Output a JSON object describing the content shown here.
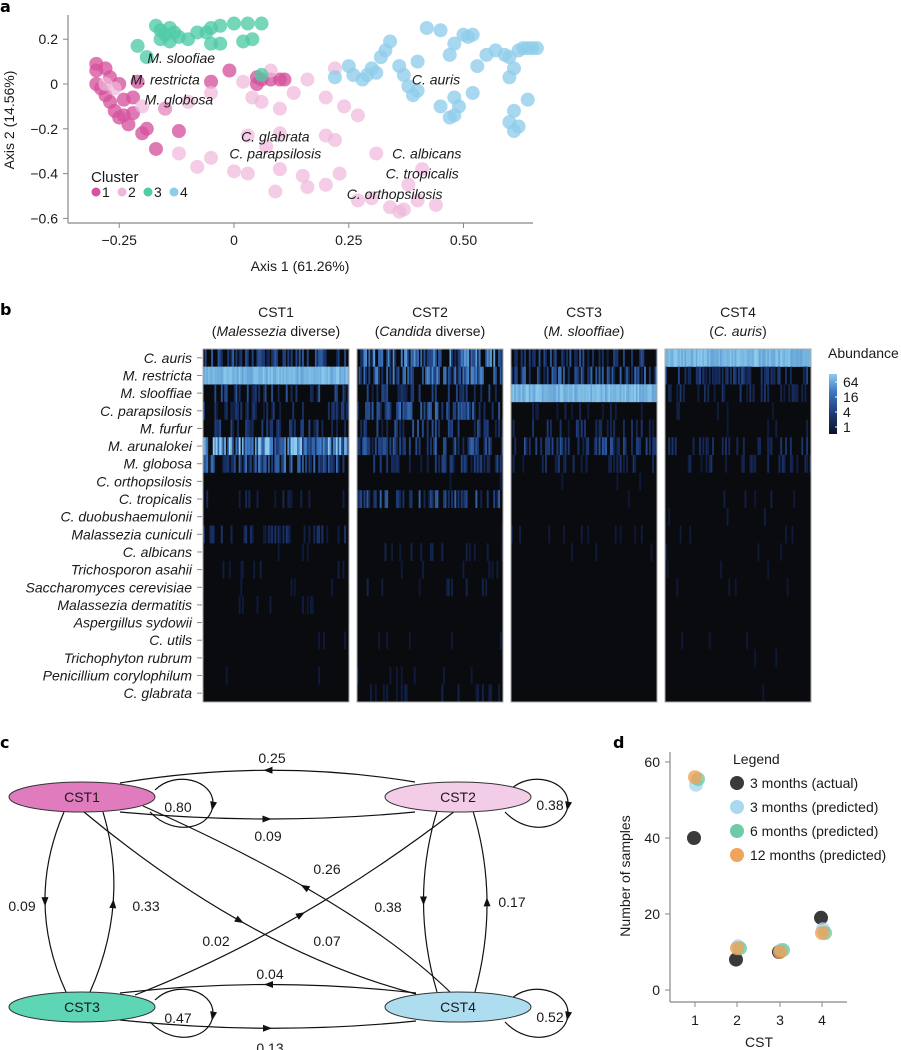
{
  "figure": {
    "panel_letters": [
      "a",
      "b",
      "c",
      "d"
    ]
  },
  "chart_data": [
    {
      "panel": "a",
      "type": "scatter",
      "title": "",
      "xlabel": "Axis 1 (61.26%)",
      "ylabel": "Axis 2 (14.56%)",
      "xlim": [
        -0.34,
        0.71
      ],
      "ylim": [
        -0.62,
        0.29
      ],
      "xticks": [
        -0.25,
        0,
        0.25,
        0.5
      ],
      "xtick_labels": [
        "−0.25",
        "0",
        "0.25",
        "0.50"
      ],
      "yticks": [
        0.2,
        0,
        -0.2,
        -0.4,
        -0.6
      ],
      "ytick_labels": [
        "0.2",
        "0",
        "−0.2",
        "−0.4",
        "−0.6"
      ],
      "legend": {
        "title": "Cluster",
        "placement": "bottom-left",
        "entries": [
          {
            "label": "1",
            "color": "#D6539E"
          },
          {
            "label": "2",
            "color": "#EFB6DA"
          },
          {
            "label": "3",
            "color": "#4FCBA6"
          },
          {
            "label": "4",
            "color": "#8ECDEA"
          }
        ]
      },
      "annotations": [
        {
          "text": "M. sloofiae",
          "x": -0.115,
          "y": 0.115
        },
        {
          "text": "M. restricta",
          "x": -0.15,
          "y": 0.02
        },
        {
          "text": "M. globosa",
          "x": -0.12,
          "y": -0.07
        },
        {
          "text": "C. auris",
          "x": 0.44,
          "y": 0.02
        },
        {
          "text": "C. glabrata",
          "x": 0.09,
          "y": -0.235
        },
        {
          "text": "C. parapsilosis",
          "x": 0.09,
          "y": -0.31
        },
        {
          "text": "C. albicans",
          "x": 0.42,
          "y": -0.31
        },
        {
          "text": "C. tropicalis",
          "x": 0.41,
          "y": -0.4
        },
        {
          "text": "C. orthopsilosis",
          "x": 0.35,
          "y": -0.49
        }
      ],
      "series": [
        {
          "name": "1",
          "color": "#D6539E",
          "points": [
            [
              -0.3,
              0.09
            ],
            [
              -0.28,
              0.07
            ],
            [
              -0.3,
              0.0
            ],
            [
              -0.29,
              -0.02
            ],
            [
              -0.28,
              -0.05
            ],
            [
              -0.27,
              -0.08
            ],
            [
              -0.26,
              -0.12
            ],
            [
              -0.25,
              -0.15
            ],
            [
              -0.24,
              -0.14
            ],
            [
              -0.22,
              -0.13
            ],
            [
              -0.23,
              -0.18
            ],
            [
              -0.2,
              -0.22
            ],
            [
              -0.19,
              -0.2
            ],
            [
              -0.17,
              -0.29
            ],
            [
              -0.12,
              -0.21
            ],
            [
              -0.27,
              0.03
            ],
            [
              -0.25,
              0.0
            ],
            [
              -0.24,
              -0.07
            ],
            [
              -0.22,
              -0.06
            ],
            [
              -0.21,
              0.01
            ],
            [
              -0.05,
              0.01
            ],
            [
              -0.01,
              0.06
            ],
            [
              0.05,
              0.03
            ],
            [
              0.05,
              0.0
            ],
            [
              0.06,
              0.02
            ],
            [
              0.08,
              0.02
            ],
            [
              0.1,
              0.02
            ],
            [
              0.11,
              0.02
            ],
            [
              -0.15,
              -0.11
            ],
            [
              -0.3,
              0.06
            ]
          ]
        },
        {
          "name": "2",
          "color": "#EFB6DA",
          "points": [
            [
              -0.28,
              0.0
            ],
            [
              -0.26,
              -0.02
            ],
            [
              -0.2,
              -0.1
            ],
            [
              -0.15,
              -0.11
            ],
            [
              -0.1,
              -0.08
            ],
            [
              -0.05,
              -0.04
            ],
            [
              0.02,
              0.01
            ],
            [
              0.04,
              -0.06
            ],
            [
              0.06,
              -0.08
            ],
            [
              0.1,
              -0.11
            ],
            [
              0.13,
              -0.04
            ],
            [
              0.16,
              0.02
            ],
            [
              0.2,
              -0.06
            ],
            [
              0.22,
              0.07
            ],
            [
              0.24,
              -0.1
            ],
            [
              0.27,
              -0.14
            ],
            [
              0.08,
              0.06
            ],
            [
              -0.12,
              -0.31
            ],
            [
              -0.08,
              -0.37
            ],
            [
              -0.05,
              -0.33
            ],
            [
              0.0,
              -0.39
            ],
            [
              0.03,
              -0.4
            ],
            [
              0.09,
              -0.48
            ],
            [
              0.1,
              -0.38
            ],
            [
              0.15,
              -0.41
            ],
            [
              0.16,
              -0.46
            ],
            [
              0.2,
              -0.45
            ],
            [
              0.23,
              -0.4
            ],
            [
              0.27,
              -0.52
            ],
            [
              0.3,
              -0.51
            ],
            [
              0.34,
              -0.55
            ],
            [
              0.36,
              -0.57
            ],
            [
              0.37,
              -0.56
            ],
            [
              0.4,
              -0.52
            ],
            [
              0.44,
              -0.54
            ],
            [
              0.41,
              -0.38
            ],
            [
              0.38,
              -0.45
            ],
            [
              0.2,
              -0.23
            ],
            [
              0.22,
              -0.25
            ],
            [
              0.31,
              -0.31
            ],
            [
              0.03,
              -0.23
            ],
            [
              0.07,
              -0.28
            ],
            [
              0.1,
              -0.22
            ]
          ]
        },
        {
          "name": "3",
          "color": "#4FCBA6",
          "points": [
            [
              -0.17,
              0.26
            ],
            [
              -0.16,
              0.24
            ],
            [
              -0.15,
              0.22
            ],
            [
              -0.14,
              0.25
            ],
            [
              -0.13,
              0.23
            ],
            [
              -0.16,
              0.2
            ],
            [
              -0.14,
              0.19
            ],
            [
              -0.12,
              0.21
            ],
            [
              -0.1,
              0.2
            ],
            [
              -0.08,
              0.23
            ],
            [
              -0.06,
              0.23
            ],
            [
              -0.05,
              0.25
            ],
            [
              -0.03,
              0.26
            ],
            [
              0.0,
              0.27
            ],
            [
              0.03,
              0.27
            ],
            [
              0.06,
              0.27
            ],
            [
              0.02,
              0.19
            ],
            [
              0.04,
              0.2
            ],
            [
              -0.05,
              0.18
            ],
            [
              -0.03,
              0.18
            ],
            [
              -0.21,
              0.17
            ],
            [
              -0.19,
              0.12
            ],
            [
              0.06,
              0.04
            ]
          ]
        },
        {
          "name": "4",
          "color": "#8ECDEA",
          "points": [
            [
              0.22,
              0.03
            ],
            [
              0.25,
              0.08
            ],
            [
              0.26,
              0.04
            ],
            [
              0.28,
              0.02
            ],
            [
              0.29,
              0.04
            ],
            [
              0.31,
              0.05
            ],
            [
              0.32,
              0.12
            ],
            [
              0.33,
              0.15
            ],
            [
              0.34,
              0.19
            ],
            [
              0.3,
              0.07
            ],
            [
              0.37,
              0.04
            ],
            [
              0.38,
              -0.01
            ],
            [
              0.39,
              -0.05
            ],
            [
              0.4,
              -0.03
            ],
            [
              0.42,
              0.25
            ],
            [
              0.45,
              0.24
            ],
            [
              0.47,
              0.13
            ],
            [
              0.48,
              0.18
            ],
            [
              0.5,
              0.22
            ],
            [
              0.51,
              0.21
            ],
            [
              0.52,
              0.22
            ],
            [
              0.45,
              -0.1
            ],
            [
              0.48,
              -0.06
            ],
            [
              0.49,
              -0.1
            ],
            [
              0.52,
              -0.04
            ],
            [
              0.47,
              -0.15
            ],
            [
              0.48,
              -0.14
            ],
            [
              0.55,
              0.13
            ],
            [
              0.57,
              0.15
            ],
            [
              0.59,
              0.13
            ],
            [
              0.6,
              0.12
            ],
            [
              0.62,
              0.15
            ],
            [
              0.63,
              0.16
            ],
            [
              0.64,
              0.16
            ],
            [
              0.65,
              0.16
            ],
            [
              0.66,
              0.16
            ],
            [
              0.61,
              0.07
            ],
            [
              0.6,
              0.03
            ],
            [
              0.64,
              -0.07
            ],
            [
              0.61,
              -0.12
            ],
            [
              0.6,
              -0.17
            ],
            [
              0.62,
              -0.19
            ],
            [
              0.61,
              -0.21
            ],
            [
              0.53,
              0.08
            ],
            [
              0.4,
              0.1
            ],
            [
              0.36,
              0.08
            ]
          ]
        }
      ]
    },
    {
      "panel": "b",
      "type": "heatmap",
      "title": "",
      "columns_groups": [
        {
          "name": "CST1",
          "subtitle_italic": "Malessezia",
          "subtitle_rest": " diverse",
          "subtitle_plain_prefix": "("
        },
        {
          "name": "CST2",
          "subtitle_italic": "Candida",
          "subtitle_rest": " diverse",
          "subtitle_plain_prefix": "("
        },
        {
          "name": "CST3",
          "subtitle_italic": "M. slooffiae",
          "subtitle_rest": "",
          "subtitle_plain_prefix": "("
        },
        {
          "name": "CST4",
          "subtitle_italic": "C. auris",
          "subtitle_rest": "",
          "subtitle_plain_prefix": "("
        }
      ],
      "rows": [
        "C. auris",
        "M. restricta",
        "M. slooffiae",
        "C. parapsilosis",
        "M. furfur",
        "M. arunalokei",
        "M. globosa",
        "C. orthopsilosis",
        "C. tropicalis",
        "C. duobushaemulonii",
        "Malassezia cuniculi",
        "C. albicans",
        "Trichosporon asahii",
        "Saccharomyces cerevisiae",
        "Malassezia dermatitis",
        "Aspergillus sydowii",
        "C. utils",
        "Trichophyton rubrum",
        "Penicillium corylophilum",
        "C. glabrata"
      ],
      "mean_intensity": [
        [
          0.35,
          0.95,
          0.3,
          0.22,
          0.25,
          0.65,
          0.45,
          0.0,
          0.12,
          0.02,
          0.18,
          0.05,
          0.08,
          0.05,
          0.06,
          0.01,
          0.06,
          0.03,
          0.05,
          0.02
        ],
        [
          0.5,
          0.45,
          0.25,
          0.4,
          0.3,
          0.35,
          0.25,
          0.06,
          0.35,
          0.03,
          0.04,
          0.1,
          0.08,
          0.1,
          0.03,
          0.03,
          0.05,
          0.03,
          0.05,
          0.1
        ],
        [
          0.3,
          0.4,
          0.95,
          0.1,
          0.2,
          0.3,
          0.18,
          0.05,
          0.04,
          0.01,
          0.06,
          0.05,
          0.03,
          0.03,
          0.02,
          0.03,
          0.02,
          0.01,
          0.01,
          0.01
        ],
        [
          0.95,
          0.25,
          0.2,
          0.08,
          0.08,
          0.18,
          0.16,
          0.02,
          0.08,
          0.06,
          0.05,
          0.06,
          0.04,
          0.04,
          0.03,
          0.03,
          0.04,
          0.04,
          0.02,
          0.03
        ]
      ],
      "colorbar": {
        "title": "Abundance",
        "ticks": [
          "64",
          "16",
          "4",
          "1"
        ],
        "scale": "log2",
        "colors": [
          "#0B1129",
          "#1D3C7A",
          "#3C78C0",
          "#8DCCEE"
        ]
      }
    },
    {
      "panel": "c",
      "type": "diagram",
      "nodes": [
        {
          "id": "CST1",
          "label": "CST1",
          "color": "#E07BBE"
        },
        {
          "id": "CST2",
          "label": "CST2",
          "color": "#F3CCE8"
        },
        {
          "id": "CST3",
          "label": "CST3",
          "color": "#5ED5B5"
        },
        {
          "id": "CST4",
          "label": "CST4",
          "color": "#AEDDF0"
        }
      ],
      "edges": [
        {
          "from": "CST1",
          "to": "CST1",
          "p": "0.80"
        },
        {
          "from": "CST2",
          "to": "CST2",
          "p": "0.38"
        },
        {
          "from": "CST3",
          "to": "CST3",
          "p": "0.47"
        },
        {
          "from": "CST4",
          "to": "CST4",
          "p": "0.52"
        },
        {
          "from": "CST2",
          "to": "CST1",
          "p": "0.25"
        },
        {
          "from": "CST1",
          "to": "CST2",
          "p": "0.09"
        },
        {
          "from": "CST1",
          "to": "CST3",
          "p": "0.09"
        },
        {
          "from": "CST3",
          "to": "CST1",
          "p": "0.33"
        },
        {
          "from": "CST1",
          "to": "CST4",
          "p": "0.02"
        },
        {
          "from": "CST4",
          "to": "CST1",
          "p": "0.26"
        },
        {
          "from": "CST3",
          "to": "CST2",
          "p": "0.07"
        },
        {
          "from": "CST2",
          "to": "CST4",
          "p": "0.38"
        },
        {
          "from": "CST4",
          "to": "CST2",
          "p": "0.17"
        },
        {
          "from": "CST4",
          "to": "CST3",
          "p": "0.04"
        },
        {
          "from": "CST3",
          "to": "CST4",
          "p": "0.13"
        }
      ]
    },
    {
      "panel": "d",
      "type": "scatter",
      "title": "",
      "xlabel": "CST",
      "ylabel": "Number of samples",
      "categories": [
        "1",
        "2",
        "3",
        "4"
      ],
      "ylim": [
        0,
        60
      ],
      "yticks": [
        0,
        20,
        40,
        60
      ],
      "legend": {
        "title": "Legend",
        "placement": "top-right"
      },
      "series": [
        {
          "name": "3 months (actual)",
          "color": "#3A3A3A",
          "values": [
            40,
            8,
            10,
            19
          ]
        },
        {
          "name": "3 months (predicted)",
          "color": "#A9D8EF",
          "values": [
            54,
            11.5,
            10.5,
            16
          ]
        },
        {
          "name": "6 months (predicted)",
          "color": "#6FCBA5",
          "values": [
            55.5,
            11,
            10.5,
            15
          ]
        },
        {
          "name": "12 months (predicted)",
          "color": "#F0A35A",
          "values": [
            56,
            11,
            10,
            15
          ]
        }
      ]
    }
  ]
}
